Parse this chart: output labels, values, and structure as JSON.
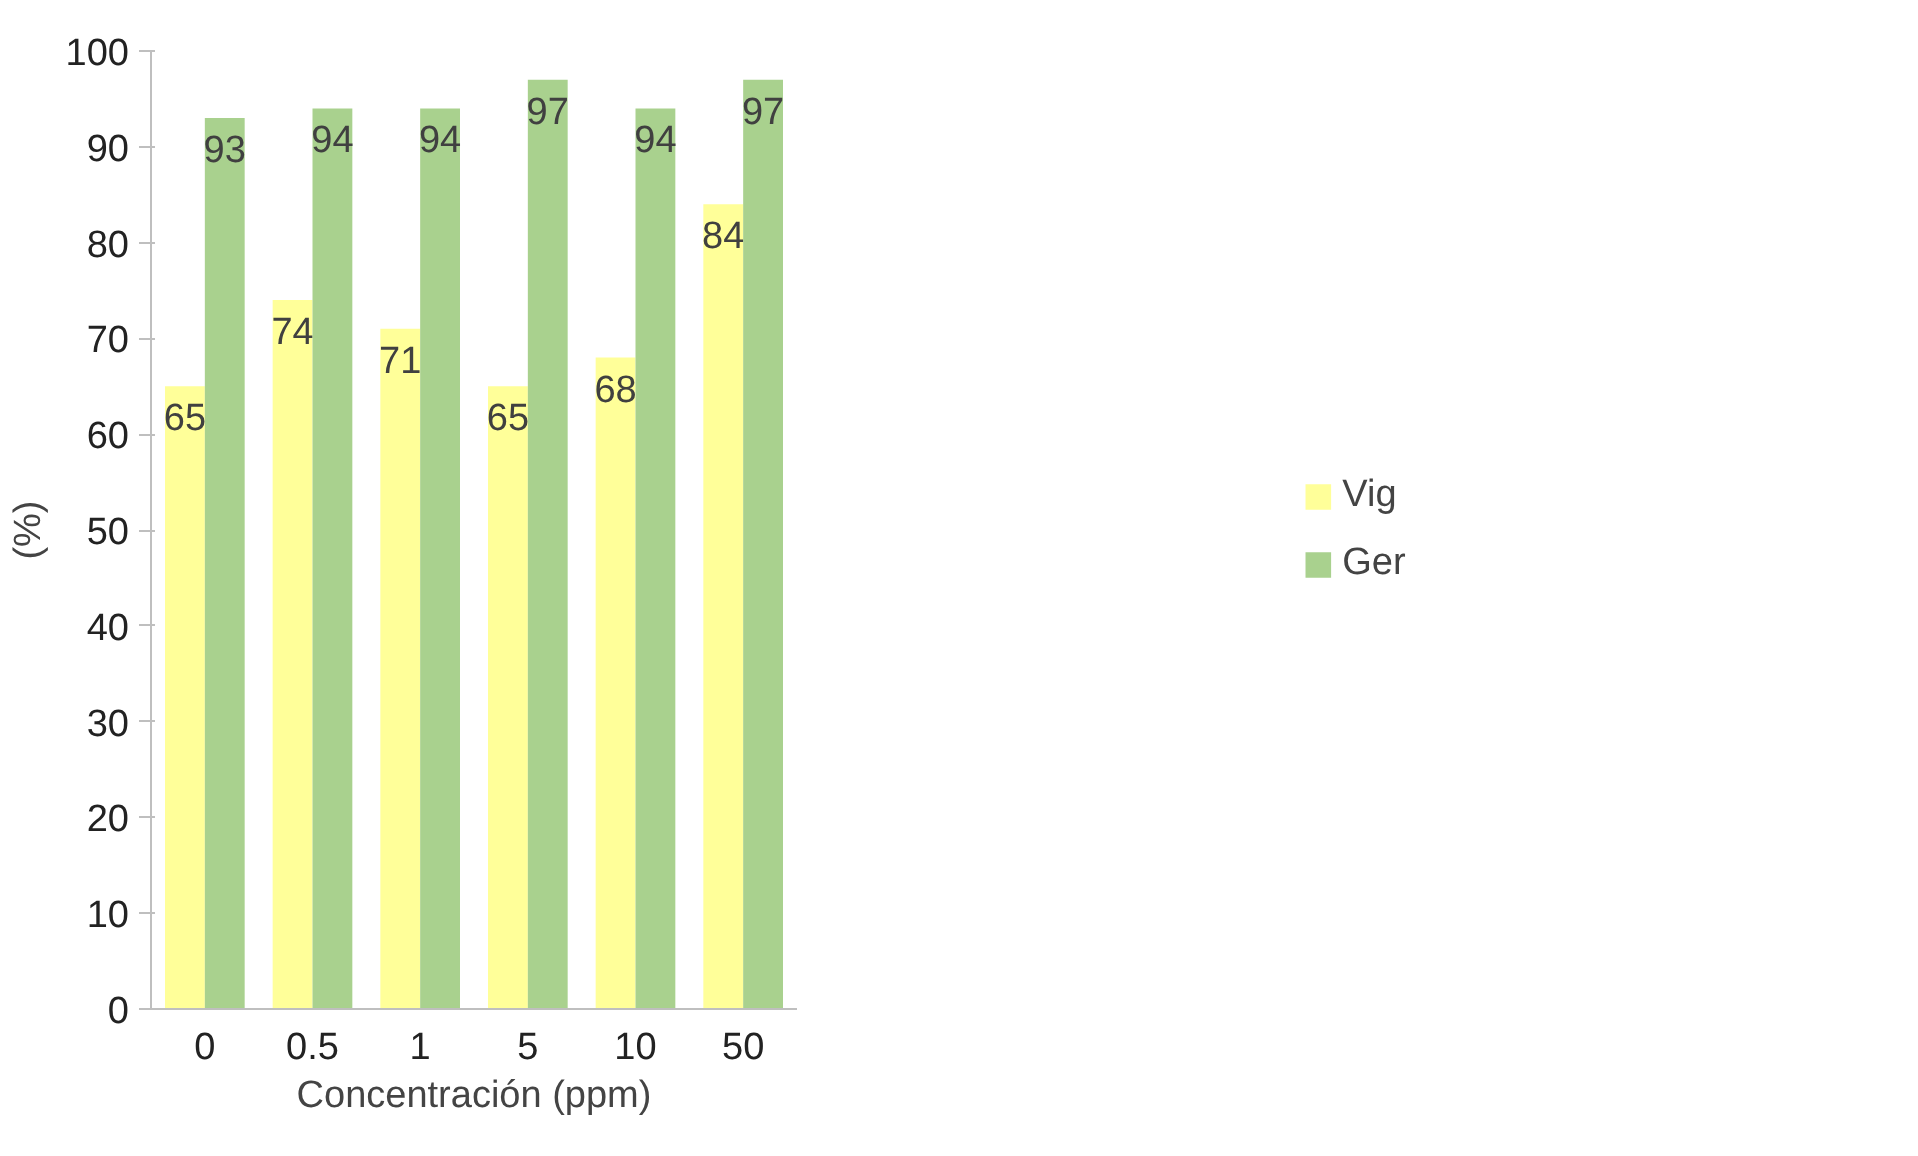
{
  "chart_data": {
    "type": "bar",
    "xlabel": "Concentración (ppm)",
    "ylabel": "(%)",
    "categories": [
      "0",
      "0.5",
      "1",
      "5",
      "10",
      "50"
    ],
    "series": [
      {
        "name": "Vig",
        "color": "#ffff99",
        "values": [
          65,
          74,
          71,
          65,
          68,
          84
        ]
      },
      {
        "name": "Ger",
        "color": "#a9d18e",
        "values": [
          93,
          94,
          94,
          97,
          94,
          97
        ]
      }
    ],
    "ylim": [
      0,
      100
    ],
    "yticks": [
      0,
      10,
      20,
      30,
      40,
      50,
      60,
      70,
      80,
      90,
      100
    ],
    "grid": false,
    "legend": "right",
    "data_labels": true
  }
}
